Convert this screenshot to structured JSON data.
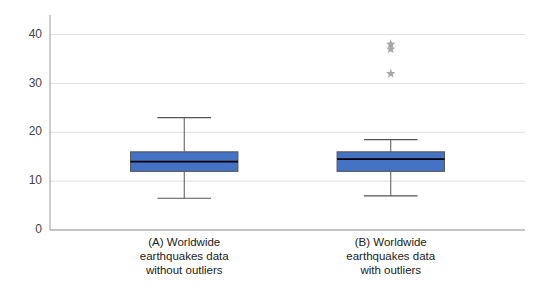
{
  "chart_data": {
    "type": "box",
    "categories": [
      "(A)  Worldwide\nearthquakes data\nwithout outliers",
      "(B)  Worldwide\nearthquakes data\nwith outliers"
    ],
    "boxes": [
      {
        "whislo": 6.5,
        "q1": 12.0,
        "med": 14.0,
        "q3": 16.0,
        "whishi": 23.0,
        "fliers": []
      },
      {
        "whislo": 7.0,
        "q1": 12.0,
        "med": 14.5,
        "q3": 16.0,
        "whishi": 18.5,
        "fliers": [
          32,
          37,
          38
        ]
      }
    ],
    "color": "#4472C4",
    "ylim": [
      0,
      44
    ],
    "yticks": [
      0,
      10,
      20,
      30,
      40
    ],
    "grid": true
  }
}
